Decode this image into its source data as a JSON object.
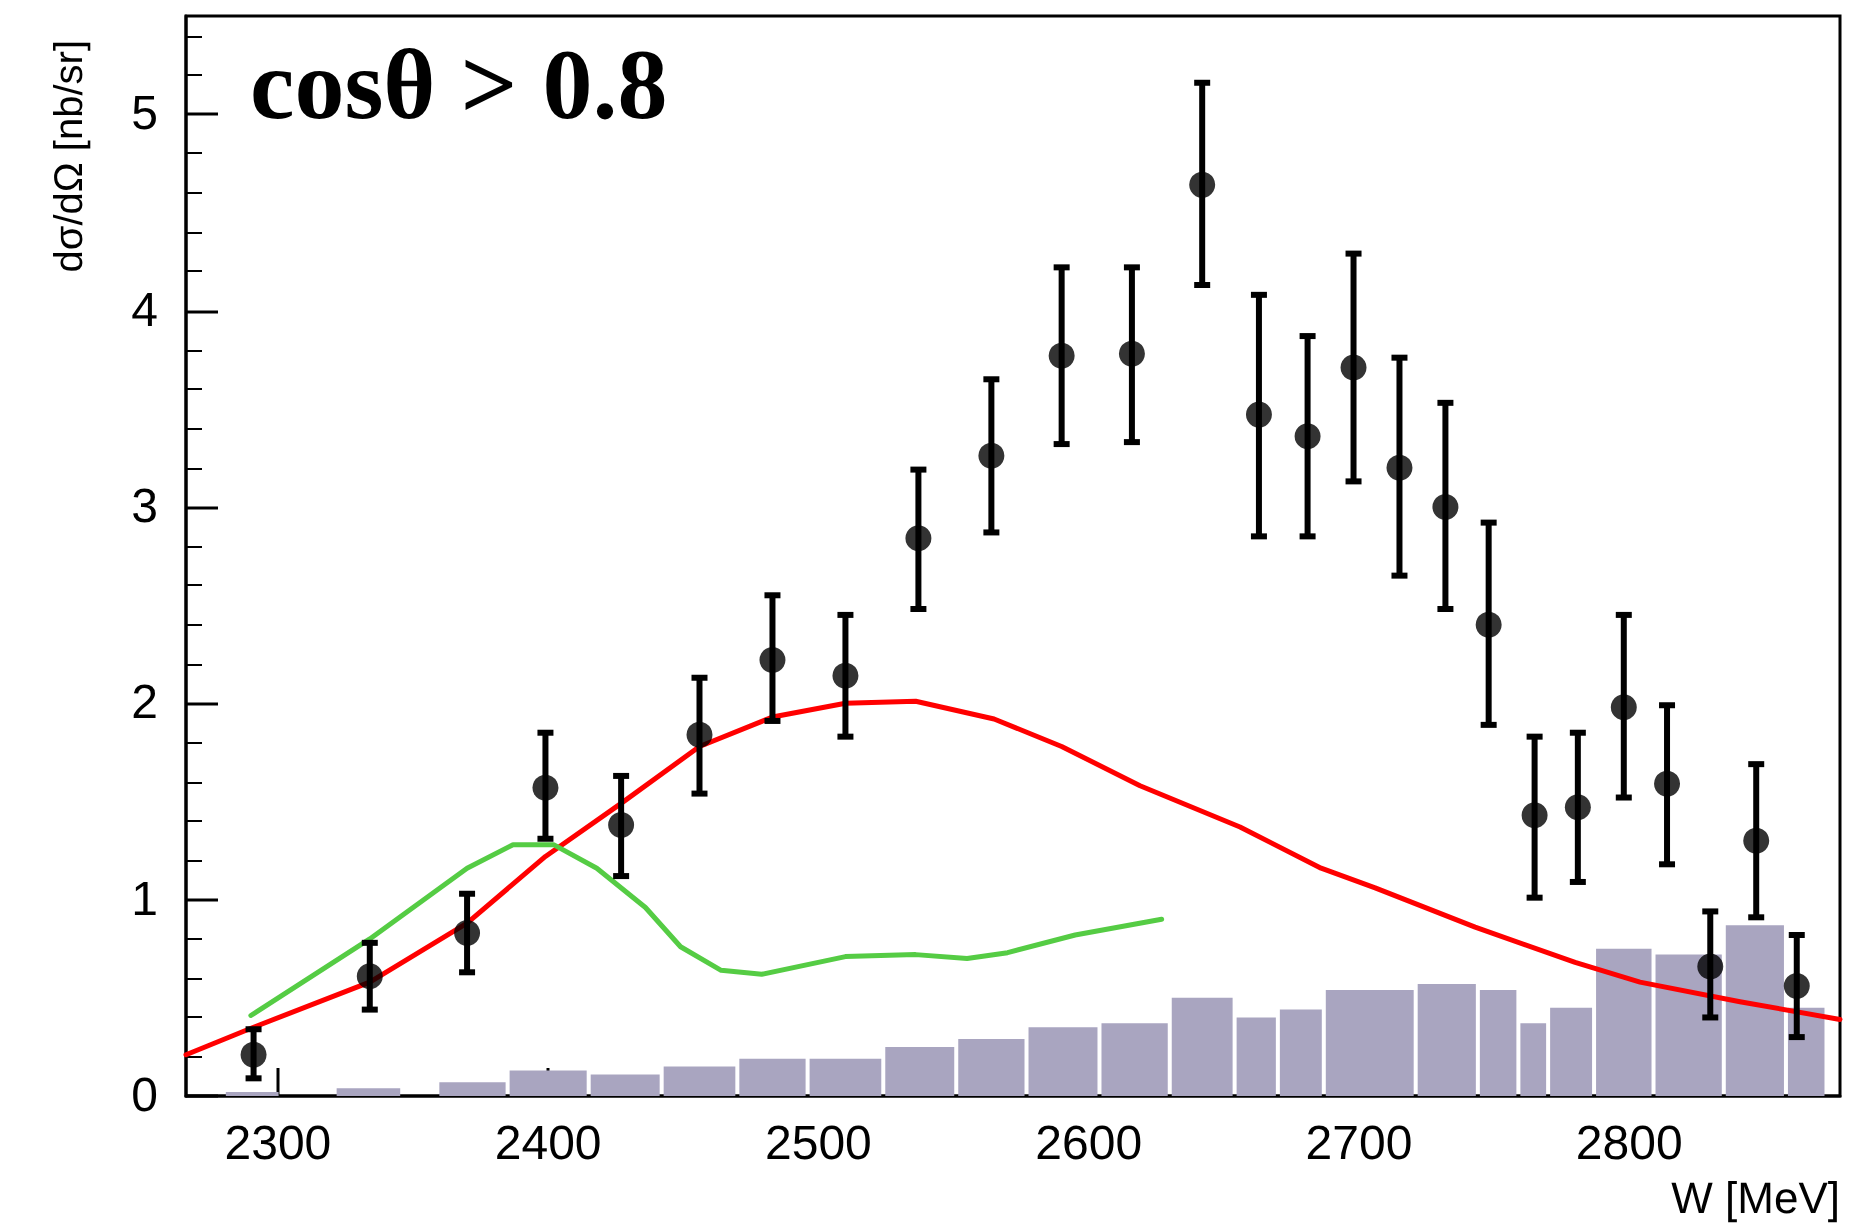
{
  "chart_data": {
    "type": "scatter",
    "title": "cosθ > 0.8",
    "xlabel": "W [MeV]",
    "ylabel": "dσ/dΩ [nb/sr]",
    "xlim": [
      2266,
      2878
    ],
    "xticks": [
      2300,
      2400,
      2500,
      2600,
      2700,
      2800
    ],
    "ylim": [
      0,
      5.5
    ],
    "yticks": [
      0,
      1,
      2,
      3,
      4,
      5
    ],
    "grid": false,
    "marker": "circle",
    "series": [
      {
        "type": "histogram",
        "color": "#a9a5c0",
        "bins": [
          2280,
          2301,
          2321,
          2346,
          2359,
          2385,
          2415,
          2442,
          2470,
          2496,
          2524,
          2551,
          2577,
          2604,
          2630,
          2654,
          2670,
          2687,
          2721,
          2744,
          2759,
          2770,
          2787,
          2809,
          2835,
          2858,
          2873
        ],
        "values": [
          0.02,
          0,
          0.04,
          0,
          0.07,
          0.13,
          0.11,
          0.15,
          0.19,
          0.19,
          0.25,
          0.29,
          0.35,
          0.37,
          0.5,
          0.4,
          0.44,
          0.54,
          0.57,
          0.54,
          0.37,
          0.45,
          0.75,
          0.72,
          0.87,
          0.45
        ]
      },
      {
        "type": "line",
        "color": "#ff0000",
        "marker": "none",
        "line_style": "solid",
        "x": [
          2266,
          2291,
          2334,
          2370,
          2399,
          2427,
          2456,
          2483,
          2510,
          2536,
          2565,
          2590,
          2619,
          2656,
          2686,
          2706,
          2743,
          2780,
          2804,
          2841,
          2878
        ],
        "values": [
          0.21,
          0.35,
          0.58,
          0.88,
          1.22,
          1.49,
          1.78,
          1.93,
          2.0,
          2.01,
          1.92,
          1.78,
          1.58,
          1.37,
          1.16,
          1.06,
          0.86,
          0.68,
          0.58,
          0.48,
          0.39
        ]
      },
      {
        "type": "line",
        "color": "#55cc44",
        "marker": "none",
        "line_style": "solid",
        "x": [
          2290,
          2334,
          2370,
          2387,
          2402,
          2418,
          2436,
          2449,
          2464,
          2479,
          2510,
          2536,
          2555,
          2570,
          2595,
          2627
        ],
        "values": [
          0.41,
          0.8,
          1.16,
          1.28,
          1.28,
          1.16,
          0.96,
          0.76,
          0.64,
          0.62,
          0.71,
          0.72,
          0.7,
          0.73,
          0.82,
          0.9
        ]
      },
      {
        "color": "#000000",
        "x": [
          2291,
          2334,
          2370,
          2399,
          2427,
          2456,
          2483,
          2510,
          2537,
          2564,
          2590,
          2616,
          2642,
          2663,
          2681,
          2698,
          2715,
          2732,
          2748,
          2765,
          2781,
          2798,
          2814,
          2830,
          2847,
          2862
        ],
        "values": [
          0.21,
          0.61,
          0.83,
          1.57,
          1.38,
          1.84,
          2.22,
          2.14,
          2.84,
          3.26,
          3.77,
          3.78,
          4.64,
          3.47,
          3.36,
          3.71,
          3.2,
          3.0,
          2.4,
          1.43,
          1.47,
          1.98,
          1.59,
          0.66,
          1.3,
          0.56
        ],
        "errors": [
          [
            0.09,
            0.34
          ],
          [
            0.44,
            0.78
          ],
          [
            0.63,
            1.03
          ],
          [
            1.31,
            1.85
          ],
          [
            1.12,
            1.63
          ],
          [
            1.54,
            2.13
          ],
          [
            1.91,
            2.55
          ],
          [
            1.83,
            2.45
          ],
          [
            2.48,
            3.19
          ],
          [
            2.87,
            3.65
          ],
          [
            3.32,
            4.22
          ],
          [
            3.33,
            4.22
          ],
          [
            4.13,
            5.16
          ],
          [
            2.85,
            4.08
          ],
          [
            2.85,
            3.87
          ],
          [
            3.13,
            4.29
          ],
          [
            2.65,
            3.76
          ],
          [
            2.48,
            3.53
          ],
          [
            1.89,
            2.92
          ],
          [
            1.01,
            1.83
          ],
          [
            1.09,
            1.85
          ],
          [
            1.52,
            2.45
          ],
          [
            1.18,
            1.99
          ],
          [
            0.4,
            0.94
          ],
          [
            0.91,
            1.69
          ],
          [
            0.3,
            0.82
          ]
        ]
      }
    ]
  }
}
